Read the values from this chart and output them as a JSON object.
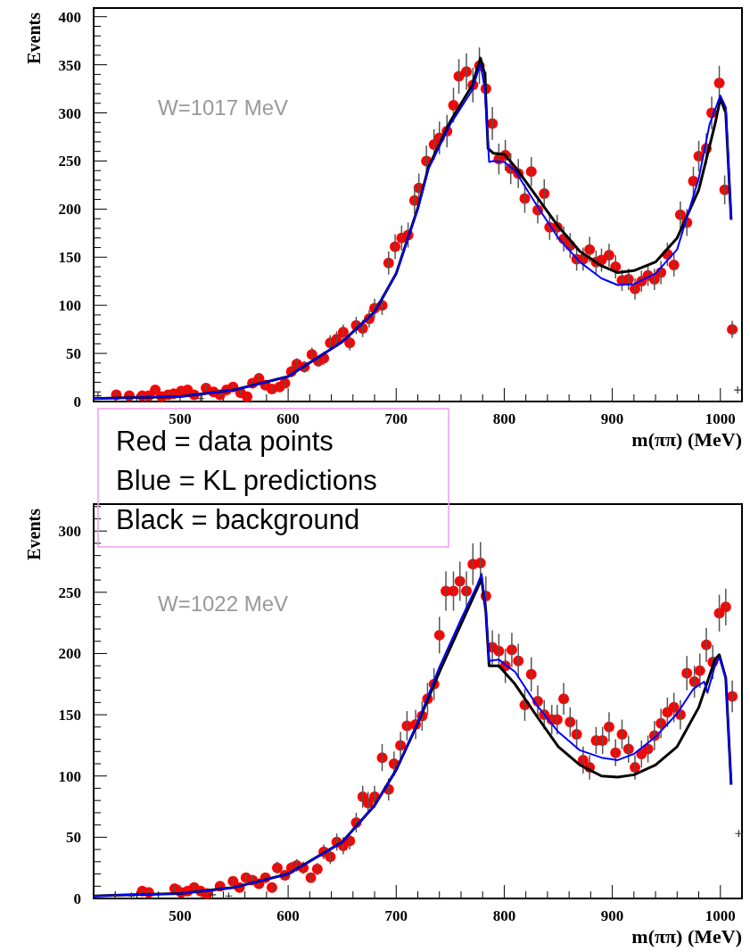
{
  "chart_data": [
    {
      "type": "scatter",
      "xlabel": "m(ππ) (MeV)",
      "ylabel": "Events",
      "annotations": [
        "W=1017 MeV",
        "Red = data points",
        "Blue = KL predictions",
        "Black = background"
      ],
      "xlim": [
        420,
        1020
      ],
      "ylim": [
        0,
        409
      ],
      "xticks": [
        {
          "value": 440,
          "label": null
        },
        {
          "value": 460,
          "label": null
        },
        {
          "value": 480,
          "label": null
        },
        500,
        {
          "value": 520,
          "label": null
        },
        {
          "value": 540,
          "label": null
        },
        {
          "value": 560,
          "label": null
        },
        {
          "value": 580,
          "label": null
        },
        600,
        {
          "value": 620,
          "label": null
        },
        {
          "value": 640,
          "label": null
        },
        {
          "value": 660,
          "label": null
        },
        {
          "value": 680,
          "label": null
        },
        700,
        {
          "value": 720,
          "label": null
        },
        {
          "value": 740,
          "label": null
        },
        {
          "value": 760,
          "label": null
        },
        {
          "value": 780,
          "label": null
        },
        800,
        {
          "value": 820,
          "label": null
        },
        {
          "value": 840,
          "label": null
        },
        {
          "value": 860,
          "label": null
        },
        {
          "value": 880,
          "label": null
        },
        900,
        {
          "value": 920,
          "label": null
        },
        {
          "value": 940,
          "label": null
        },
        {
          "value": 960,
          "label": null
        },
        {
          "value": 980,
          "label": null
        },
        1000
      ],
      "yticks": [
        0,
        {
          "value": 10,
          "label": null
        },
        {
          "value": 20,
          "label": null
        },
        {
          "value": 30,
          "label": null
        },
        {
          "value": 40,
          "label": null
        },
        50,
        {
          "value": 60,
          "label": null
        },
        {
          "value": 70,
          "label": null
        },
        {
          "value": 80,
          "label": null
        },
        {
          "value": 90,
          "label": null
        },
        100,
        {
          "value": 110,
          "label": null
        },
        {
          "value": 120,
          "label": null
        },
        {
          "value": 130,
          "label": null
        },
        {
          "value": 140,
          "label": null
        },
        150,
        {
          "value": 160,
          "label": null
        },
        {
          "value": 170,
          "label": null
        },
        {
          "value": 180,
          "label": null
        },
        {
          "value": 190,
          "label": null
        },
        200,
        {
          "value": 210,
          "label": null
        },
        {
          "value": 220,
          "label": null
        },
        {
          "value": 230,
          "label": null
        },
        {
          "value": 240,
          "label": null
        },
        250,
        {
          "value": 260,
          "label": null
        },
        {
          "value": 270,
          "label": null
        },
        {
          "value": 280,
          "label": null
        },
        {
          "value": 290,
          "label": null
        },
        300,
        {
          "value": 310,
          "label": null
        },
        {
          "value": 320,
          "label": null
        },
        {
          "value": 330,
          "label": null
        },
        {
          "value": 340,
          "label": null
        },
        350,
        {
          "value": 360,
          "label": null
        },
        {
          "value": 370,
          "label": null
        },
        {
          "value": 380,
          "label": null
        },
        {
          "value": 390,
          "label": null
        },
        400
      ],
      "series": [
        {
          "color": "#ff0000",
          "marker": "circle",
          "x": [
            441,
            453,
            465,
            471,
            477,
            483,
            489,
            494,
            501,
            507,
            513,
            524,
            531,
            537,
            543,
            549,
            556,
            562,
            567,
            573,
            579,
            585,
            592,
            597,
            603,
            608,
            615,
            622,
            628,
            633,
            639,
            645,
            651,
            657,
            663,
            669,
            675,
            680,
            687,
            693,
            699,
            705,
            711,
            717,
            721,
            728,
            735,
            740,
            747,
            753,
            758,
            765,
            771,
            777,
            783,
            789,
            795,
            801,
            806,
            813,
            819,
            825,
            831,
            837,
            842,
            849,
            855,
            861,
            867,
            873,
            879,
            885,
            890,
            897,
            903,
            909,
            915,
            921,
            927,
            933,
            939,
            945,
            951,
            957,
            963,
            969,
            975,
            980,
            987,
            992,
            999,
            1004,
            1011
          ],
          "values": [
            7,
            6,
            6,
            6,
            12,
            5,
            7,
            8,
            11,
            12,
            7,
            14,
            10,
            7,
            12,
            15,
            9,
            5,
            19,
            24,
            17,
            13,
            15,
            19,
            31,
            39,
            36,
            49,
            42,
            45,
            61,
            65,
            72,
            61,
            79,
            76,
            86,
            97,
            100,
            144,
            161,
            170,
            173,
            209,
            222,
            250,
            267,
            274,
            281,
            308,
            338,
            343,
            329,
            349,
            325,
            289,
            252,
            256,
            242,
            237,
            211,
            239,
            199,
            216,
            181,
            181,
            169,
            162,
            148,
            148,
            158,
            145,
            147,
            152,
            140,
            126,
            127,
            117,
            125,
            131,
            127,
            134,
            153,
            142,
            194,
            186,
            229,
            255,
            263,
            300,
            331,
            220,
            75
          ],
          "errors": [
            3,
            2,
            2,
            2,
            3,
            2,
            3,
            3,
            3,
            3,
            3,
            4,
            3,
            3,
            3,
            4,
            3,
            2,
            4,
            5,
            4,
            4,
            4,
            4,
            6,
            6,
            6,
            7,
            6,
            7,
            8,
            8,
            8,
            8,
            9,
            9,
            9,
            10,
            10,
            12,
            13,
            13,
            13,
            14,
            15,
            16,
            16,
            17,
            17,
            18,
            18,
            19,
            18,
            19,
            18,
            17,
            16,
            16,
            16,
            15,
            15,
            15,
            14,
            15,
            13,
            13,
            13,
            13,
            12,
            12,
            13,
            12,
            12,
            12,
            12,
            11,
            11,
            11,
            11,
            11,
            11,
            12,
            12,
            12,
            14,
            14,
            15,
            16,
            16,
            17,
            18,
            15,
            9
          ]
        },
        {
          "type": "line",
          "color": "#000000",
          "x": [
            420,
            450,
            500,
            550,
            600,
            650,
            680,
            700,
            720,
            730,
            750,
            770,
            778,
            782,
            785,
            790,
            800,
            810,
            830,
            850,
            870,
            890,
            905,
            920,
            940,
            960,
            980,
            995,
            1000,
            1005,
            1010
          ],
          "values": [
            3,
            4,
            5,
            12,
            26,
            62,
            93,
            133,
            201,
            244,
            291,
            328,
            357,
            340,
            263,
            258,
            257,
            244,
            213,
            182,
            156,
            141,
            134,
            136,
            145,
            170,
            220,
            288,
            315,
            300,
            189
          ]
        },
        {
          "type": "line",
          "color": "#0000ff",
          "x": [
            420,
            450,
            500,
            550,
            600,
            650,
            680,
            700,
            720,
            730,
            750,
            770,
            778,
            782,
            786,
            790,
            800,
            810,
            830,
            850,
            870,
            890,
            905,
            920,
            940,
            960,
            980,
            990,
            1000,
            1005,
            1010
          ],
          "values": [
            3,
            4,
            5,
            12,
            26,
            62,
            93,
            133,
            200,
            242,
            288,
            323,
            351,
            325,
            249,
            250,
            249,
            240,
            204,
            170,
            145,
            128,
            121,
            122,
            133,
            158,
            232,
            288,
            318,
            306,
            189
          ]
        },
        {
          "color": "#333333",
          "marker": "cross",
          "x": [
            424,
            519,
            1016
          ],
          "values": [
            6,
            3,
            12
          ]
        }
      ]
    },
    {
      "type": "scatter",
      "xlabel": "m(ππ) (MeV)",
      "ylabel": "Events",
      "annotations": [
        "W=1022 MeV"
      ],
      "xlim": [
        420,
        1020
      ],
      "ylim": [
        0,
        322
      ],
      "xticks": [
        {
          "value": 440,
          "label": null
        },
        {
          "value": 460,
          "label": null
        },
        {
          "value": 480,
          "label": null
        },
        500,
        {
          "value": 520,
          "label": null
        },
        {
          "value": 540,
          "label": null
        },
        {
          "value": 560,
          "label": null
        },
        {
          "value": 580,
          "label": null
        },
        600,
        {
          "value": 620,
          "label": null
        },
        {
          "value": 640,
          "label": null
        },
        {
          "value": 660,
          "label": null
        },
        {
          "value": 680,
          "label": null
        },
        700,
        {
          "value": 720,
          "label": null
        },
        {
          "value": 740,
          "label": null
        },
        {
          "value": 760,
          "label": null
        },
        {
          "value": 780,
          "label": null
        },
        800,
        {
          "value": 820,
          "label": null
        },
        {
          "value": 840,
          "label": null
        },
        {
          "value": 860,
          "label": null
        },
        {
          "value": 880,
          "label": null
        },
        900,
        {
          "value": 920,
          "label": null
        },
        {
          "value": 940,
          "label": null
        },
        {
          "value": 960,
          "label": null
        },
        {
          "value": 980,
          "label": null
        },
        1000
      ],
      "yticks": [
        0,
        {
          "value": 10,
          "label": null
        },
        {
          "value": 20,
          "label": null
        },
        {
          "value": 30,
          "label": null
        },
        {
          "value": 40,
          "label": null
        },
        50,
        {
          "value": 60,
          "label": null
        },
        {
          "value": 70,
          "label": null
        },
        {
          "value": 80,
          "label": null
        },
        {
          "value": 90,
          "label": null
        },
        100,
        {
          "value": 110,
          "label": null
        },
        {
          "value": 120,
          "label": null
        },
        {
          "value": 130,
          "label": null
        },
        {
          "value": 140,
          "label": null
        },
        150,
        {
          "value": 160,
          "label": null
        },
        {
          "value": 170,
          "label": null
        },
        {
          "value": 180,
          "label": null
        },
        {
          "value": 190,
          "label": null
        },
        200,
        {
          "value": 210,
          "label": null
        },
        {
          "value": 220,
          "label": null
        },
        {
          "value": 230,
          "label": null
        },
        {
          "value": 240,
          "label": null
        },
        250,
        {
          "value": 260,
          "label": null
        },
        {
          "value": 270,
          "label": null
        },
        {
          "value": 280,
          "label": null
        },
        {
          "value": 290,
          "label": null
        },
        300,
        {
          "value": 310,
          "label": null
        },
        {
          "value": 320,
          "label": null
        }
      ],
      "series": [
        {
          "color": "#ff0000",
          "marker": "circle",
          "x": [
            465,
            471,
            495,
            501,
            507,
            513,
            519,
            525,
            537,
            549,
            555,
            561,
            567,
            573,
            579,
            585,
            590,
            597,
            603,
            608,
            614,
            621,
            627,
            633,
            639,
            645,
            651,
            657,
            663,
            669,
            674,
            680,
            687,
            693,
            698,
            704,
            710,
            718,
            724,
            729,
            735,
            740,
            746,
            753,
            759,
            765,
            771,
            778,
            783,
            789,
            795,
            801,
            807,
            813,
            819,
            825,
            831,
            837,
            844,
            849,
            855,
            861,
            867,
            873,
            879,
            885,
            891,
            897,
            903,
            909,
            915,
            921,
            927,
            933,
            939,
            945,
            951,
            957,
            963,
            969,
            976,
            981,
            987,
            993,
            999,
            1005,
            1011
          ],
          "values": [
            6,
            5,
            8,
            5,
            6,
            9,
            6,
            4,
            10,
            14,
            9,
            17,
            15,
            12,
            17,
            9,
            25,
            19,
            25,
            27,
            25,
            17,
            24,
            38,
            34,
            46,
            43,
            47,
            62,
            83,
            78,
            83,
            115,
            89,
            110,
            125,
            141,
            142,
            149,
            163,
            175,
            215,
            251,
            251,
            259,
            251,
            273,
            274,
            247,
            205,
            202,
            190,
            203,
            194,
            158,
            183,
            161,
            150,
            146,
            146,
            163,
            144,
            134,
            113,
            107,
            129,
            129,
            140,
            119,
            134,
            122,
            107,
            118,
            122,
            133,
            143,
            152,
            156,
            150,
            184,
            177,
            186,
            207,
            193,
            233,
            238,
            165
          ],
          "errors": [
            2,
            2,
            3,
            2,
            2,
            3,
            2,
            2,
            3,
            4,
            3,
            4,
            4,
            3,
            4,
            3,
            5,
            4,
            5,
            5,
            5,
            4,
            5,
            6,
            6,
            7,
            7,
            7,
            8,
            9,
            9,
            9,
            11,
            9,
            10,
            11,
            12,
            12,
            12,
            13,
            13,
            15,
            16,
            16,
            16,
            16,
            17,
            17,
            16,
            14,
            14,
            14,
            14,
            14,
            13,
            14,
            13,
            12,
            12,
            12,
            13,
            12,
            12,
            11,
            10,
            11,
            11,
            12,
            11,
            12,
            11,
            10,
            11,
            11,
            12,
            12,
            12,
            12,
            12,
            14,
            13,
            14,
            14,
            14,
            15,
            15,
            13
          ]
        },
        {
          "type": "line",
          "color": "#000000",
          "x": [
            420,
            450,
            500,
            550,
            600,
            650,
            680,
            700,
            720,
            740,
            760,
            775,
            779,
            783,
            786,
            795,
            810,
            830,
            850,
            870,
            890,
            905,
            920,
            940,
            960,
            980,
            995,
            999,
            1005,
            1010
          ],
          "values": [
            2,
            3,
            4,
            9,
            20,
            46,
            76,
            105,
            143,
            185,
            224,
            253,
            261,
            234,
            190,
            190,
            175,
            149,
            124,
            109,
            100,
            99,
            101,
            109,
            124,
            156,
            195,
            199,
            180,
            93
          ]
        },
        {
          "type": "line",
          "color": "#0000ff",
          "x": [
            420,
            450,
            500,
            550,
            600,
            650,
            680,
            700,
            720,
            740,
            760,
            775,
            779,
            783,
            786,
            795,
            810,
            830,
            850,
            870,
            890,
            905,
            920,
            940,
            960,
            975,
            985,
            988,
            995,
            999,
            1005,
            1010
          ],
          "values": [
            2,
            3,
            4,
            9,
            20,
            46,
            76,
            105,
            144,
            189,
            228,
            256,
            265,
            236,
            194,
            195,
            185,
            158,
            136,
            121,
            115,
            113,
            118,
            132,
            151,
            171,
            177,
            168,
            190,
            197,
            180,
            93
          ]
        },
        {
          "color": "#333333",
          "marker": "cross",
          "x": [
            440,
            455,
            530,
            545,
            1017
          ],
          "values": [
            2,
            2,
            3,
            2,
            53
          ]
        }
      ]
    }
  ]
}
